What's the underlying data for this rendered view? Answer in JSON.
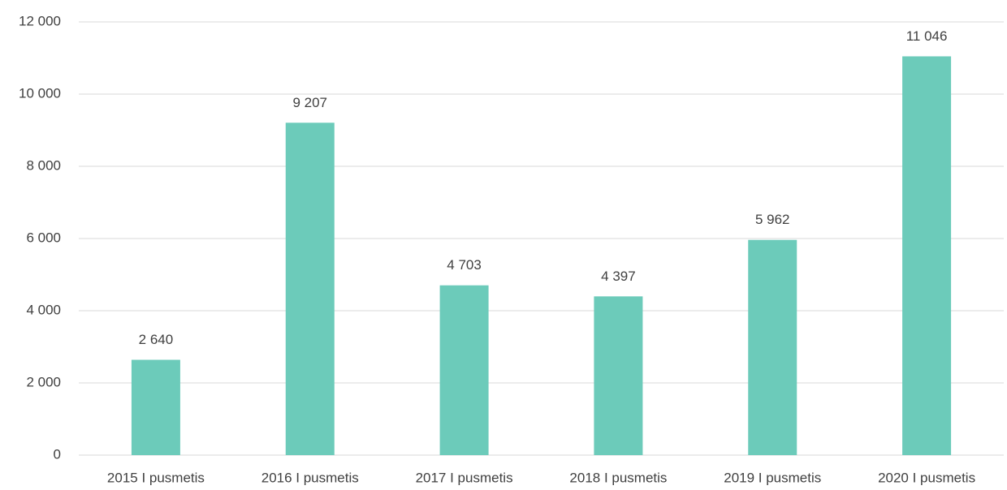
{
  "chart_data": {
    "type": "bar",
    "categories": [
      "2015 I pusmetis",
      "2016 I pusmetis",
      "2017 I pusmetis",
      "2018 I pusmetis",
      "2019 I pusmetis",
      "2020 I pusmetis"
    ],
    "values": [
      2640,
      9207,
      4703,
      4397,
      5962,
      11046
    ],
    "value_labels": [
      "2 640",
      "9 207",
      "4 703",
      "4 397",
      "5 962",
      "11 046"
    ],
    "color": "#6ccbba",
    "ylim": [
      0,
      12000
    ],
    "yticks": [
      0,
      {
        "value": 2000,
        "label": "2 000"
      },
      {
        "value": 4000,
        "label": "4 000"
      },
      {
        "value": 6000,
        "label": "6 000"
      },
      {
        "value": 8000,
        "label": "8 000"
      },
      {
        "value": 10000,
        "label": "10 000"
      },
      {
        "value": 12000,
        "label": "12 000"
      }
    ],
    "grid": true
  }
}
